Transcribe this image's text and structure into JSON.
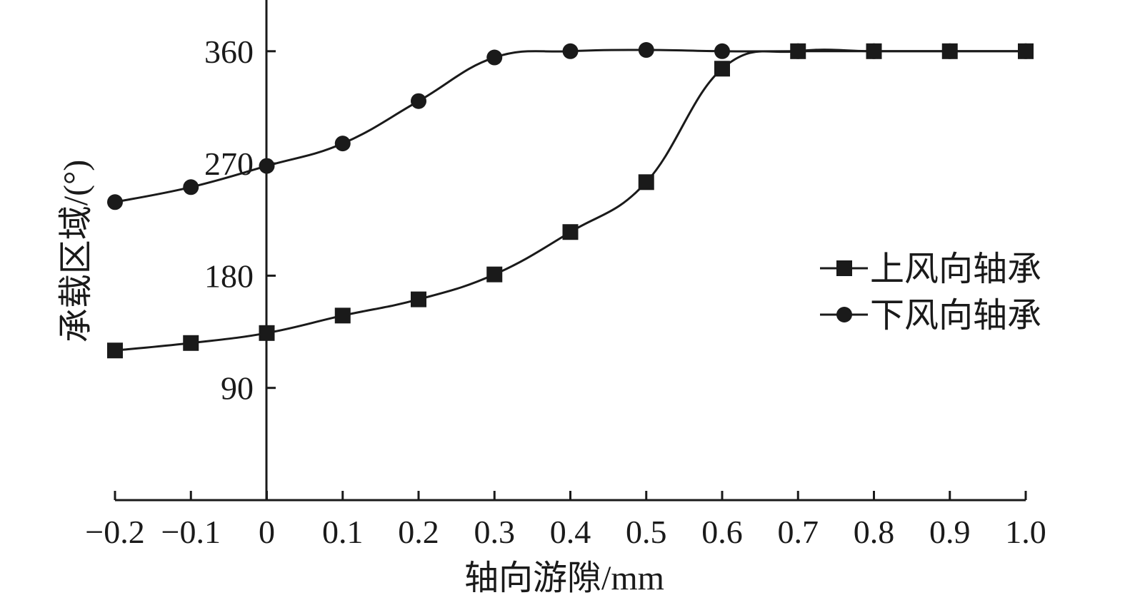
{
  "chart_data": {
    "type": "line",
    "x": [
      -0.2,
      -0.1,
      0,
      0.1,
      0.2,
      0.3,
      0.4,
      0.5,
      0.6,
      0.7,
      0.8,
      0.9,
      1.0
    ],
    "x_tick_labels": [
      "−0.2",
      "−0.1",
      "0",
      "0.1",
      "0.2",
      "0.3",
      "0.4",
      "0.5",
      "0.6",
      "0.7",
      "0.8",
      "0.9",
      "1.0"
    ],
    "y_tick_labels": [
      "90",
      "180",
      "270",
      "360"
    ],
    "y_ticks": [
      90,
      180,
      270,
      360
    ],
    "xlabel": "轴向游隙/mm",
    "ylabel": "承载区域/(°)",
    "xlim": [
      -0.2,
      1.0
    ],
    "ylim": [
      0,
      400
    ],
    "grid": false,
    "legend_position": "right",
    "series": [
      {
        "name": "上风向轴承",
        "marker": "square",
        "color": "#1a1a1a",
        "values": [
          120,
          126,
          134,
          148,
          161,
          181,
          215,
          255,
          346,
          360,
          360,
          360,
          360
        ]
      },
      {
        "name": "下风向轴承",
        "marker": "circle",
        "color": "#1a1a1a",
        "values": [
          239,
          251,
          268,
          286,
          320,
          355,
          360,
          361,
          360,
          360,
          360,
          360,
          360
        ]
      }
    ]
  }
}
